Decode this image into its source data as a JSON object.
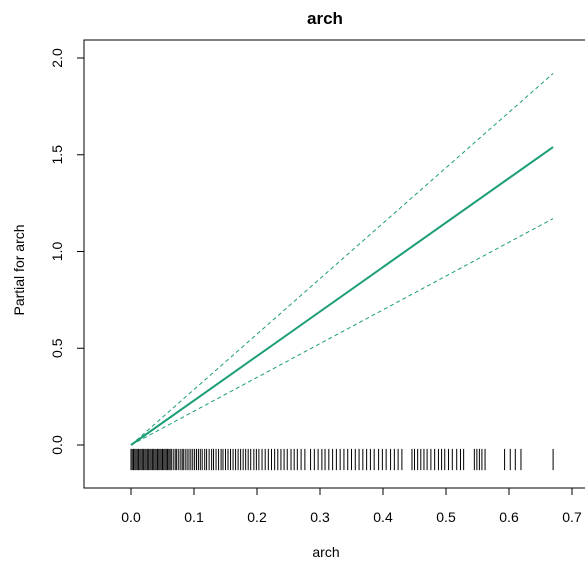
{
  "chart_data": {
    "type": "line",
    "title": "arch",
    "xlabel": "arch",
    "ylabel": "Partial for arch",
    "xlim": [
      -0.08,
      0.7
    ],
    "ylim": [
      -0.22,
      2.05
    ],
    "x_ticks": [
      "0.0",
      "0.1",
      "0.2",
      "0.3",
      "0.4",
      "0.5",
      "0.6",
      "0.7"
    ],
    "y_ticks": [
      "0.0",
      "0.5",
      "1.0",
      "1.5",
      "2.0"
    ],
    "colors": {
      "fit": "#1b9e77",
      "band": "#1b9e77",
      "rug": "#000000"
    },
    "grid": false,
    "series": [
      {
        "line": "solid",
        "x": [
          0.0,
          0.67
        ],
        "y": [
          0.0,
          1.54
        ]
      },
      {
        "line": "dashed",
        "x": [
          0.0,
          0.67
        ],
        "y": [
          0.0,
          1.92
        ]
      },
      {
        "line": "dashed",
        "x": [
          0.0,
          0.67
        ],
        "y": [
          0.0,
          1.17
        ]
      }
    ],
    "rug": {
      "y_range": [
        -0.13,
        -0.02
      ],
      "x": [
        0.0,
        0.002,
        0.004,
        0.006,
        0.008,
        0.01,
        0.012,
        0.014,
        0.016,
        0.018,
        0.02,
        0.022,
        0.024,
        0.026,
        0.028,
        0.03,
        0.032,
        0.034,
        0.036,
        0.038,
        0.04,
        0.042,
        0.044,
        0.046,
        0.048,
        0.05,
        0.052,
        0.054,
        0.056,
        0.058,
        0.06,
        0.062,
        0.064,
        0.067,
        0.07,
        0.072,
        0.075,
        0.078,
        0.081,
        0.083,
        0.086,
        0.089,
        0.092,
        0.095,
        0.098,
        0.101,
        0.104,
        0.107,
        0.11,
        0.113,
        0.117,
        0.12,
        0.124,
        0.128,
        0.131,
        0.135,
        0.139,
        0.143,
        0.146,
        0.15,
        0.154,
        0.158,
        0.162,
        0.166,
        0.17,
        0.174,
        0.178,
        0.182,
        0.186,
        0.19,
        0.195,
        0.199,
        0.203,
        0.208,
        0.213,
        0.218,
        0.223,
        0.228,
        0.233,
        0.238,
        0.243,
        0.248,
        0.254,
        0.259,
        0.264,
        0.27,
        0.276,
        0.285,
        0.291,
        0.297,
        0.303,
        0.308,
        0.314,
        0.32,
        0.326,
        0.332,
        0.338,
        0.344,
        0.35,
        0.356,
        0.362,
        0.368,
        0.374,
        0.38,
        0.386,
        0.393,
        0.399,
        0.405,
        0.412,
        0.418,
        0.424,
        0.43,
        0.446,
        0.45,
        0.455,
        0.46,
        0.465,
        0.47,
        0.476,
        0.482,
        0.488,
        0.493,
        0.498,
        0.504,
        0.51,
        0.517,
        0.523,
        0.528,
        0.545,
        0.549,
        0.553,
        0.557,
        0.562,
        0.593,
        0.602,
        0.61,
        0.619,
        0.67
      ]
    }
  }
}
